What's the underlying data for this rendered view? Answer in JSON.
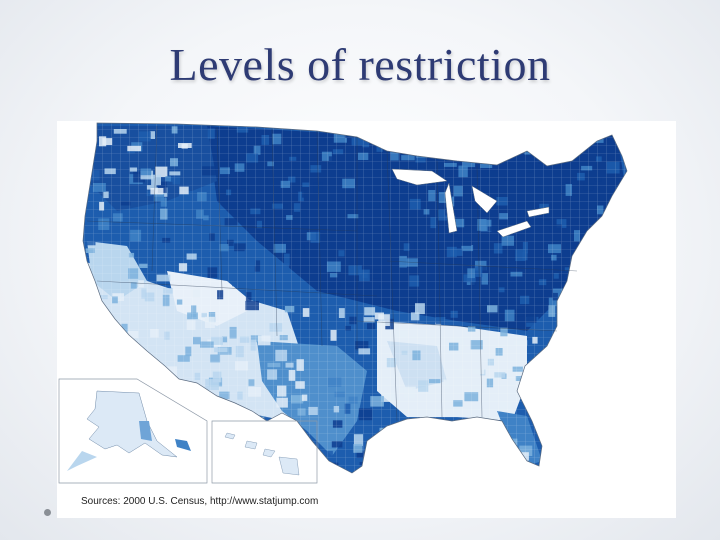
{
  "slide": {
    "title": "Levels of restriction"
  },
  "map": {
    "source_caption": "Sources: 2000 U.S. Census, http://www.statjump.com",
    "palette": [
      "#0d3d8f",
      "#1d5dae",
      "#3f82c6",
      "#7db2dd",
      "#b9d6ee",
      "#e4eef8"
    ],
    "background": "#ffffff"
  }
}
